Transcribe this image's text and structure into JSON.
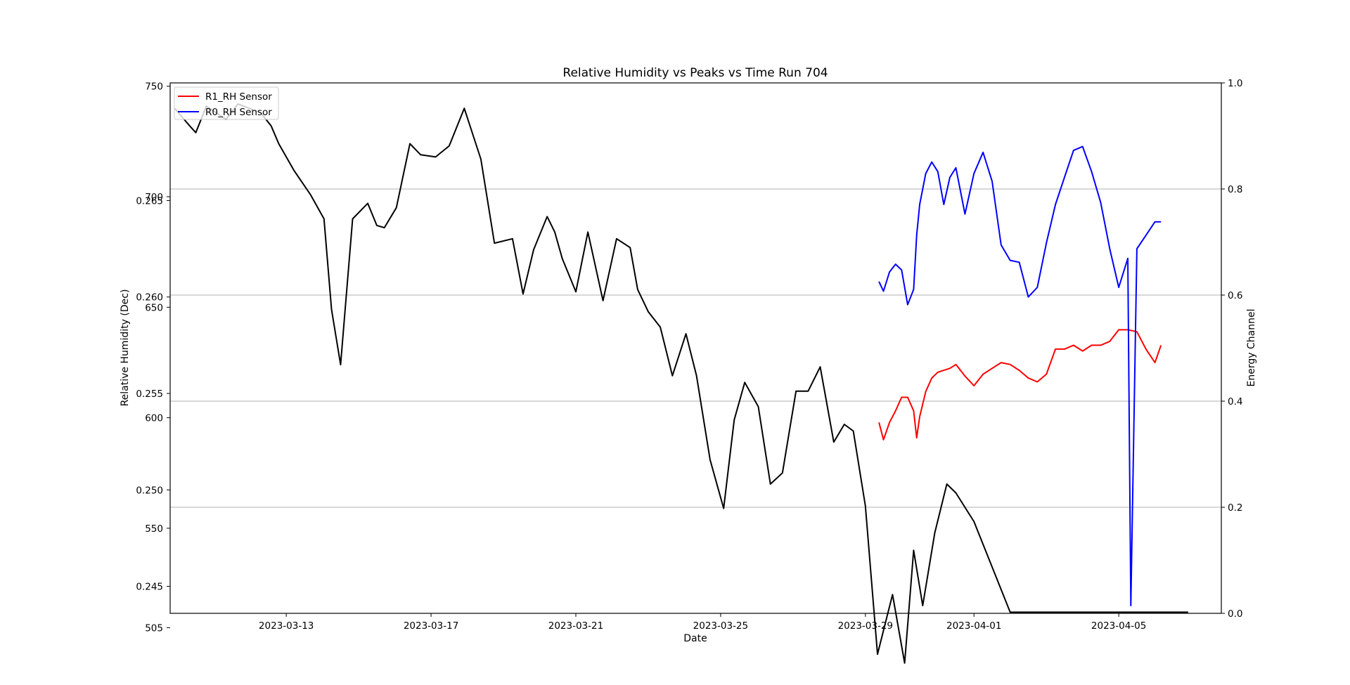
{
  "chart_data": {
    "type": "line",
    "title": "Relative Humidity vs Peaks vs Time Run 704",
    "xlabel": "Date",
    "ylabel": "Relative Humidity (Dec)",
    "ylabel_right": "Energy Channel",
    "xlim": [
      "2023-03-09T19:00",
      "2023-04-07T20:00"
    ],
    "x_ticks": [
      "2023-03-13",
      "2023-03-17",
      "2023-03-21",
      "2023-03-25",
      "2023-03-29",
      "2023-04-01",
      "2023-04-05"
    ],
    "left_axis_peaks": {
      "ylim": [
        511.5,
        751.5
      ],
      "ticks": [
        {
          "value": 505,
          "label": "505"
        },
        {
          "value": 550,
          "label": "550"
        },
        {
          "value": 600,
          "label": "600"
        },
        {
          "value": 650,
          "label": "650"
        },
        {
          "value": 700,
          "label": "700"
        },
        {
          "value": 750,
          "label": "750"
        }
      ]
    },
    "left_axis_humidity": {
      "ylim": [
        0.2436,
        0.2711
      ],
      "ticks": [
        {
          "value": 0.245,
          "label": "0.245"
        },
        {
          "value": 0.25,
          "label": "0.250"
        },
        {
          "value": 0.255,
          "label": "0.255"
        },
        {
          "value": 0.26,
          "label": "0.260"
        },
        {
          "value": 0.265,
          "label": "0.265"
        }
      ]
    },
    "right_axis": {
      "ylim": [
        0.0,
        1.0
      ],
      "ticks": [
        "0.0",
        "0.2",
        "0.4",
        "0.6",
        "0.8",
        "1.0"
      ],
      "grid": true
    },
    "legend": {
      "placement": "top-left"
    },
    "series": [
      {
        "name": "R1_RH Sensor",
        "color": "#ff0000",
        "axis": "humidity",
        "x": [
          "2023-03-29T09:00",
          "2023-03-29T12:00",
          "2023-03-29T16:00",
          "2023-03-29T20:00",
          "2023-03-30T00:00",
          "2023-03-30T04:00",
          "2023-03-30T08:00",
          "2023-03-30T10:00",
          "2023-03-30T12:00",
          "2023-03-30T16:00",
          "2023-03-30T20:00",
          "2023-03-31T00:00",
          "2023-03-31T04:00",
          "2023-03-31T08:00",
          "2023-03-31T12:00",
          "2023-03-31T18:00",
          "2023-04-01T00:00",
          "2023-04-01T06:00",
          "2023-04-01T12:00",
          "2023-04-01T18:00",
          "2023-04-02T00:00",
          "2023-04-02T06:00",
          "2023-04-02T12:00",
          "2023-04-02T18:00",
          "2023-04-03T00:00",
          "2023-04-03T06:00",
          "2023-04-03T12:00",
          "2023-04-03T18:00",
          "2023-04-04T00:00",
          "2023-04-04T06:00",
          "2023-04-04T12:00",
          "2023-04-04T18:00",
          "2023-04-05T00:00",
          "2023-04-05T06:00",
          "2023-04-05T12:00",
          "2023-04-05T18:00",
          "2023-04-06T00:00",
          "2023-04-06T04:00"
        ],
        "y": [
          0.2535,
          0.2526,
          0.2535,
          0.2541,
          0.2548,
          0.2548,
          0.2541,
          0.2527,
          0.2538,
          0.2551,
          0.2558,
          0.2561,
          0.2562,
          0.2563,
          0.2565,
          0.2559,
          0.2554,
          0.256,
          0.2563,
          0.2566,
          0.2565,
          0.2562,
          0.2558,
          0.2556,
          0.256,
          0.2573,
          0.2573,
          0.2575,
          0.2572,
          0.2575,
          0.2575,
          0.2577,
          0.2583,
          0.2583,
          0.2582,
          0.2573,
          0.2566,
          0.2575
        ]
      },
      {
        "name": "R0_RH Sensor",
        "color": "#0000ff",
        "axis": "humidity",
        "x": [
          "2023-03-29T09:00",
          "2023-03-29T12:00",
          "2023-03-29T16:00",
          "2023-03-29T20:00",
          "2023-03-30T00:00",
          "2023-03-30T04:00",
          "2023-03-30T08:00",
          "2023-03-30T10:00",
          "2023-03-30T12:00",
          "2023-03-30T16:00",
          "2023-03-30T20:00",
          "2023-03-31T00:00",
          "2023-03-31T04:00",
          "2023-03-31T08:00",
          "2023-03-31T12:00",
          "2023-03-31T18:00",
          "2023-04-01T00:00",
          "2023-04-01T06:00",
          "2023-04-01T12:00",
          "2023-04-01T18:00",
          "2023-04-02T00:00",
          "2023-04-02T06:00",
          "2023-04-02T12:00",
          "2023-04-02T18:00",
          "2023-04-03T00:00",
          "2023-04-03T06:00",
          "2023-04-03T12:00",
          "2023-04-03T18:00",
          "2023-04-04T00:00",
          "2023-04-04T06:00",
          "2023-04-04T12:00",
          "2023-04-04T18:00",
          "2023-04-05T00:00",
          "2023-04-05T06:00",
          "2023-04-05T08:00",
          "2023-04-05T12:00",
          "2023-04-05T18:00",
          "2023-04-06T00:00",
          "2023-04-06T04:00"
        ],
        "y": [
          0.2608,
          0.2603,
          0.2613,
          0.2617,
          0.2614,
          0.2596,
          0.2604,
          0.2632,
          0.2648,
          0.2664,
          0.267,
          0.2665,
          0.2648,
          0.2662,
          0.2667,
          0.2643,
          0.2664,
          0.2675,
          0.266,
          0.2627,
          0.2619,
          0.2618,
          0.26,
          0.2605,
          0.2628,
          0.2648,
          0.2662,
          0.2676,
          0.2678,
          0.2665,
          0.2649,
          0.2625,
          0.2605,
          0.262,
          0.244,
          0.2625,
          0.2632,
          0.2639,
          0.2639
        ]
      },
      {
        "name": "",
        "color": "#000000",
        "axis": "peaks",
        "x": [
          "2023-03-09T22:00",
          "2023-03-10T08:00",
          "2023-03-10T12:00",
          "2023-03-10T19:00",
          "2023-03-11T08:00",
          "2023-03-11T16:00",
          "2023-03-12T07:00",
          "2023-03-12T14:00",
          "2023-03-12T19:00",
          "2023-03-13T05:00",
          "2023-03-13T16:00",
          "2023-03-14T01:00",
          "2023-03-14T06:00",
          "2023-03-14T12:00",
          "2023-03-14T20:00",
          "2023-03-15T06:00",
          "2023-03-15T12:00",
          "2023-03-15T17:00",
          "2023-03-16T01:00",
          "2023-03-16T10:00",
          "2023-03-16T17:00",
          "2023-03-17T03:00",
          "2023-03-17T12:00",
          "2023-03-17T22:00",
          "2023-03-18T09:00",
          "2023-03-18T18:00",
          "2023-03-19T06:00",
          "2023-03-19T13:00",
          "2023-03-19T20:00",
          "2023-03-20T05:00",
          "2023-03-20T10:00",
          "2023-03-20T15:00",
          "2023-03-21T00:00",
          "2023-03-21T08:00",
          "2023-03-21T18:00",
          "2023-03-22T03:00",
          "2023-03-22T12:00",
          "2023-03-22T17:00",
          "2023-03-23T00:00",
          "2023-03-23T08:00",
          "2023-03-23T16:00",
          "2023-03-24T01:00",
          "2023-03-24T08:00",
          "2023-03-24T17:00",
          "2023-03-25T02:00",
          "2023-03-25T09:00",
          "2023-03-25T16:00",
          "2023-03-26T01:00",
          "2023-03-26T09:00",
          "2023-03-26T17:00",
          "2023-03-27T02:00",
          "2023-03-27T10:00",
          "2023-03-27T18:00",
          "2023-03-28T03:00",
          "2023-03-28T10:00",
          "2023-03-28T16:00",
          "2023-03-29T00:00",
          "2023-03-29T08:00",
          "2023-03-29T18:00",
          "2023-03-30T02:00",
          "2023-03-30T08:00",
          "2023-03-30T14:00",
          "2023-03-30T22:00",
          "2023-03-31T06:00",
          "2023-03-31T12:00",
          "2023-04-01T00:00",
          "2023-04-02T00:00",
          "2023-04-03T00:00",
          "2023-04-04T00:00",
          "2023-04-05T00:00",
          "2023-04-06T00:00",
          "2023-04-06T22:00"
        ],
        "y": [
          740,
          732,
          729,
          741,
          735,
          742,
          738,
          732,
          724,
          712,
          701,
          690,
          649,
          624,
          690,
          697,
          687,
          686,
          695,
          724,
          719,
          718,
          723,
          740,
          717,
          679,
          681,
          656,
          676,
          691,
          684,
          672,
          657,
          684,
          653,
          681,
          677,
          658,
          648,
          641,
          619,
          638,
          619,
          581,
          559,
          599,
          616,
          605,
          570,
          575,
          612,
          612,
          623,
          589,
          597,
          594,
          560,
          493,
          520,
          489,
          540,
          515,
          548,
          570,
          566,
          553,
          512,
          512,
          512,
          512,
          512,
          512
        ]
      }
    ]
  }
}
